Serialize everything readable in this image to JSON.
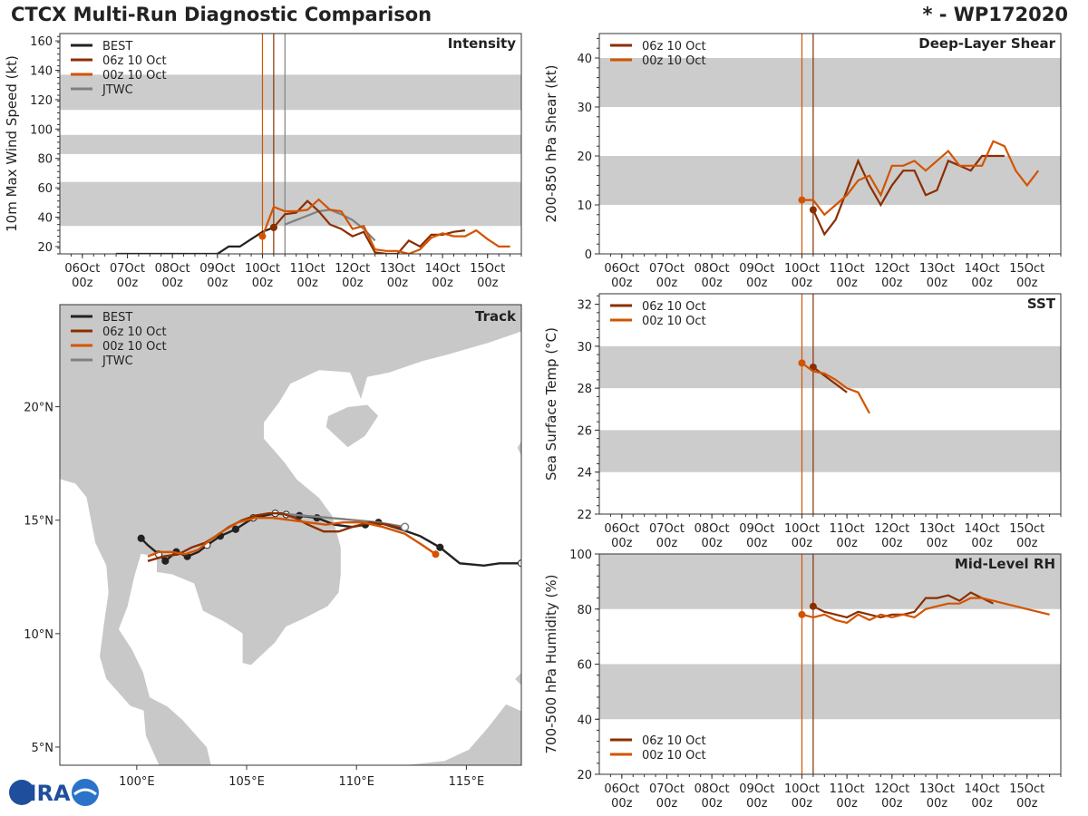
{
  "header": {
    "title": "CTCX Multi-Run Diagnostic Comparison",
    "storm": "* - WP172020"
  },
  "colors": {
    "best": "#222222",
    "run06": "#8B2E00",
    "run00": "#D35400",
    "jtwc": "#808080",
    "band": "#cccccc",
    "land": "#c8c8c8",
    "ocean": "#ffffff"
  },
  "logo": {
    "text": "CIRA"
  },
  "time_ticks": [
    {
      "day": "06Oct",
      "hour": "00z"
    },
    {
      "day": "07Oct",
      "hour": "00z"
    },
    {
      "day": "08Oct",
      "hour": "00z"
    },
    {
      "day": "09Oct",
      "hour": "00z"
    },
    {
      "day": "10Oct",
      "hour": "00z"
    },
    {
      "day": "11Oct",
      "hour": "00z"
    },
    {
      "day": "12Oct",
      "hour": "00z"
    },
    {
      "day": "13Oct",
      "hour": "00z"
    },
    {
      "day": "14Oct",
      "hour": "00z"
    },
    {
      "day": "15Oct",
      "hour": "00z"
    }
  ],
  "chart_data": [
    {
      "id": "intensity",
      "type": "line",
      "title": "Intensity",
      "ylabel": "10m Max Wind Speed (kt)",
      "xunit": "hours since 06Oct 00z",
      "xlim": [
        -12,
        234
      ],
      "ylim": [
        15,
        165
      ],
      "yticks": [
        20,
        40,
        60,
        80,
        100,
        120,
        140,
        160
      ],
      "bands": [
        [
          34,
          64
        ],
        [
          83,
          96
        ],
        [
          113,
          137
        ]
      ],
      "vlines": [
        {
          "x": 96,
          "series": "00z 10 Oct"
        },
        {
          "x": 102,
          "series": "06z 10 Oct"
        },
        {
          "x": 108,
          "series": "JTWC"
        }
      ],
      "legend": [
        "BEST",
        "06z 10 Oct",
        "00z 10 Oct",
        "JTWC"
      ],
      "series": [
        {
          "name": "BEST",
          "color": "#222222",
          "marker_last": true,
          "x": [
            18,
            24,
            30,
            36,
            42,
            48,
            54,
            60,
            66,
            72,
            78,
            84,
            90,
            96,
            102
          ],
          "y": [
            15,
            15,
            15,
            15,
            15,
            15,
            15,
            15,
            15,
            15,
            20,
            20,
            25,
            30,
            33
          ]
        },
        {
          "name": "JTWC",
          "color": "#808080",
          "x": [
            108,
            114,
            120,
            126,
            132,
            138,
            144,
            150,
            156
          ],
          "y": [
            35,
            38,
            41,
            44,
            45,
            42,
            38,
            32,
            24
          ]
        },
        {
          "name": "06z 10 Oct",
          "color": "#8B2E00",
          "marker_first": true,
          "x": [
            102,
            108,
            114,
            120,
            126,
            132,
            138,
            144,
            150,
            156,
            162,
            168,
            174,
            180,
            186,
            192,
            198,
            204
          ],
          "y": [
            33,
            42,
            43,
            51,
            44,
            35,
            32,
            27,
            30,
            16,
            15,
            15,
            24,
            20,
            28,
            28,
            30,
            31
          ]
        },
        {
          "name": "00z 10 Oct",
          "color": "#D35400",
          "marker_first": true,
          "x": [
            96,
            102,
            108,
            114,
            120,
            126,
            132,
            138,
            144,
            150,
            156,
            162,
            168,
            174,
            180,
            186,
            192,
            198,
            204,
            210,
            216,
            222,
            228
          ],
          "y": [
            27,
            47,
            44,
            44,
            45,
            52,
            45,
            44,
            32,
            34,
            18,
            17,
            17,
            15,
            18,
            26,
            29,
            27,
            27,
            31,
            25,
            20,
            20
          ]
        }
      ]
    },
    {
      "id": "shear",
      "type": "line",
      "title": "Deep-Layer Shear",
      "ylabel": "200-850 hPa Shear (kt)",
      "xlim": [
        -12,
        234
      ],
      "ylim": [
        0,
        45
      ],
      "yticks": [
        0,
        10,
        20,
        30,
        40
      ],
      "bands": [
        [
          10,
          20
        ],
        [
          30,
          40
        ]
      ],
      "vlines": [
        {
          "x": 96,
          "series": "00z 10 Oct"
        },
        {
          "x": 102,
          "series": "06z 10 Oct"
        }
      ],
      "legend": [
        "06z 10 Oct",
        "00z 10 Oct"
      ],
      "series": [
        {
          "name": "06z 10 Oct",
          "color": "#8B2E00",
          "marker_first": true,
          "x": [
            102,
            108,
            114,
            120,
            126,
            132,
            138,
            144,
            150,
            156,
            162,
            168,
            174,
            180,
            186,
            192,
            198,
            204
          ],
          "y": [
            9,
            4,
            7,
            13,
            19,
            14,
            10,
            14,
            17,
            17,
            12,
            13,
            19,
            18,
            17,
            20,
            20,
            20
          ]
        },
        {
          "name": "00z 10 Oct",
          "color": "#D35400",
          "marker_first": true,
          "x": [
            96,
            102,
            108,
            114,
            120,
            126,
            132,
            138,
            144,
            150,
            156,
            162,
            168,
            174,
            180,
            186,
            192,
            198,
            204,
            210,
            216,
            222,
            228
          ],
          "y": [
            11,
            11,
            8,
            10,
            12,
            15,
            16,
            12,
            18,
            18,
            19,
            17,
            19,
            21,
            18,
            18,
            18,
            23,
            22,
            17,
            14,
            17,
            null
          ]
        }
      ]
    },
    {
      "id": "sst",
      "type": "line",
      "title": "SST",
      "ylabel": "Sea Surface Temp (°C)",
      "xlim": [
        -12,
        234
      ],
      "ylim": [
        22,
        32.5
      ],
      "yticks": [
        22,
        24,
        26,
        28,
        30,
        32
      ],
      "bands": [
        [
          24,
          26
        ],
        [
          28,
          30
        ]
      ],
      "vlines": [
        {
          "x": 96,
          "series": "00z 10 Oct"
        },
        {
          "x": 102,
          "series": "06z 10 Oct"
        }
      ],
      "legend": [
        "06z 10 Oct",
        "00z 10 Oct"
      ],
      "series": [
        {
          "name": "06z 10 Oct",
          "color": "#8B2E00",
          "marker_first": true,
          "x": [
            102,
            108,
            114,
            120
          ],
          "y": [
            29.0,
            28.6,
            28.2,
            27.8
          ]
        },
        {
          "name": "00z 10 Oct",
          "color": "#D35400",
          "marker_first": true,
          "x": [
            96,
            102,
            108,
            114,
            120,
            126,
            132
          ],
          "y": [
            29.2,
            28.8,
            28.7,
            28.4,
            28.0,
            27.8,
            26.8
          ]
        }
      ]
    },
    {
      "id": "rh",
      "type": "line",
      "title": "Mid-Level RH",
      "ylabel": "700-500 hPa Humidity (%)",
      "xlim": [
        -12,
        234
      ],
      "ylim": [
        20,
        100
      ],
      "yticks": [
        20,
        40,
        60,
        80,
        100
      ],
      "bands": [
        [
          40,
          60
        ],
        [
          80,
          100
        ]
      ],
      "vlines": [
        {
          "x": 96,
          "series": "00z 10 Oct"
        },
        {
          "x": 102,
          "series": "06z 10 Oct"
        }
      ],
      "legend": [
        "06z 10 Oct",
        "00z 10 Oct"
      ],
      "legend_position": "bottom-left",
      "series": [
        {
          "name": "06z 10 Oct",
          "color": "#8B2E00",
          "marker_first": true,
          "x": [
            102,
            108,
            114,
            120,
            126,
            132,
            138,
            144,
            150,
            156,
            162,
            168,
            174,
            180,
            186,
            192,
            198,
            204
          ],
          "y": [
            81,
            79,
            78,
            77,
            79,
            78,
            77,
            78,
            78,
            79,
            84,
            84,
            85,
            83,
            86,
            84,
            82,
            null
          ]
        },
        {
          "name": "00z 10 Oct",
          "color": "#D35400",
          "marker_first": true,
          "x": [
            96,
            102,
            108,
            114,
            120,
            126,
            132,
            138,
            144,
            150,
            156,
            162,
            168,
            174,
            180,
            186,
            192,
            198,
            204,
            210,
            216,
            222,
            228
          ],
          "y": [
            78,
            77,
            78,
            76,
            75,
            78,
            76,
            78,
            77,
            78,
            77,
            80,
            81,
            82,
            82,
            84,
            84,
            83,
            82,
            81,
            80,
            79,
            78
          ]
        }
      ]
    },
    {
      "id": "track",
      "type": "scatter",
      "title": "Track",
      "xlim": [
        96.5,
        117.5
      ],
      "ylim": [
        4.2,
        24.5
      ],
      "xticks": [
        {
          "v": 100,
          "label": "100°E"
        },
        {
          "v": 105,
          "label": "105°E"
        },
        {
          "v": 110,
          "label": "110°E"
        },
        {
          "v": 115,
          "label": "115°E"
        }
      ],
      "yticks": [
        {
          "v": 5,
          "label": "5°N"
        },
        {
          "v": 10,
          "label": "10°N"
        },
        {
          "v": 15,
          "label": "15°N"
        },
        {
          "v": 20,
          "label": "20°N"
        }
      ],
      "legend": [
        "BEST",
        "06z 10 Oct",
        "00z 10 Oct",
        "JTWC"
      ],
      "series": [
        {
          "name": "BEST",
          "color": "#222222",
          "lon": [
            117.5,
            116.5,
            115.8,
            114.7,
            113.8,
            112.9,
            112.0,
            111.0,
            110.4,
            109.8,
            109.0,
            108.2,
            107.4,
            106.8,
            106.3,
            105.8,
            105.3,
            104.5,
            103.8,
            103.2,
            102.8,
            102.3,
            101.8,
            101.3,
            101.0,
            100.5,
            100.2
          ],
          "lat": [
            13.1,
            13.1,
            13.0,
            13.1,
            13.8,
            14.3,
            14.6,
            14.9,
            14.8,
            14.7,
            14.8,
            15.1,
            15.2,
            15.25,
            15.3,
            15.2,
            15.1,
            14.6,
            14.3,
            13.9,
            13.6,
            13.4,
            13.6,
            13.2,
            13.5,
            13.9,
            14.2
          ],
          "filled": [
            0,
            null,
            null,
            null,
            1,
            null,
            null,
            1,
            1,
            null,
            null,
            1,
            1,
            0,
            0,
            null,
            0,
            1,
            1,
            0,
            null,
            1,
            1,
            1,
            0,
            null,
            1
          ]
        },
        {
          "name": "JTWC",
          "color": "#808080",
          "lon": [
            112.2,
            111.0,
            109.9,
            108.8,
            107.6,
            106.4
          ],
          "lat": [
            14.7,
            14.9,
            15.0,
            15.1,
            15.2,
            15.3
          ]
        },
        {
          "name": "06z 10 Oct",
          "color": "#8B2E00",
          "lon": [
            112.2,
            111.4,
            110.6,
            109.8,
            109.2,
            108.5,
            107.8,
            107.2,
            106.6,
            106.0,
            105.4,
            104.8,
            104.2,
            103.6,
            103.1,
            102.5,
            101.9,
            101.2,
            100.5
          ],
          "lat": [
            14.6,
            14.8,
            14.9,
            14.7,
            14.5,
            14.5,
            14.8,
            15.1,
            15.3,
            15.3,
            15.2,
            15.0,
            14.7,
            14.3,
            14.0,
            13.8,
            13.5,
            13.4,
            13.2
          ]
        },
        {
          "name": "00z 10 Oct",
          "color": "#D35400",
          "marker_first": true,
          "lon": [
            113.6,
            113.0,
            112.2,
            111.2,
            110.3,
            109.4,
            108.6,
            107.8,
            107.0,
            106.2,
            105.4,
            104.6,
            103.9,
            103.3,
            102.8,
            102.2,
            101.6,
            101.0,
            100.5
          ],
          "lat": [
            13.5,
            13.9,
            14.4,
            14.7,
            14.9,
            14.9,
            14.8,
            14.9,
            15.0,
            15.1,
            15.1,
            14.9,
            14.5,
            14.1,
            13.7,
            13.5,
            13.6,
            13.6,
            13.4
          ]
        }
      ]
    }
  ]
}
